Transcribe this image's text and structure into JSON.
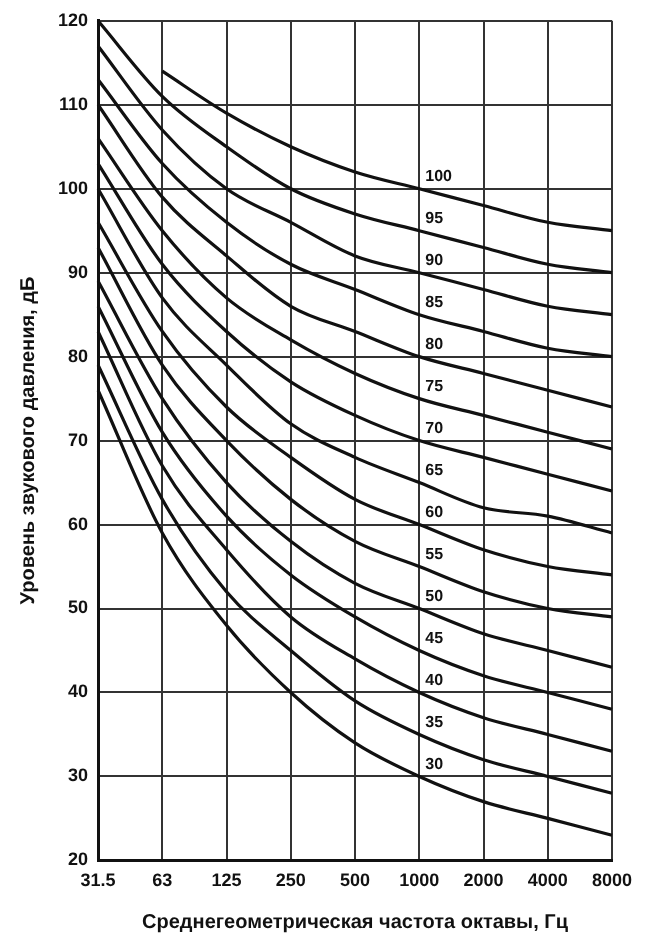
{
  "chart_data": {
    "type": "line",
    "xlabel": "Среднегеометрическая частота октавы, Гц",
    "ylabel": "Уровень звукового давления, дБ",
    "categories": [
      "31.5",
      "63",
      "125",
      "250",
      "500",
      "1000",
      "2000",
      "4000",
      "8000"
    ],
    "ylim": [
      20,
      120
    ],
    "yticks": [
      20,
      30,
      40,
      50,
      60,
      70,
      80,
      90,
      100,
      110,
      120
    ],
    "grid": true,
    "legend": false,
    "marker": "none",
    "line_style": "solid",
    "series": [
      {
        "name": "30",
        "color": "#111111",
        "values": [
          76,
          59,
          48,
          40,
          34,
          30,
          27,
          25,
          23
        ]
      },
      {
        "name": "35",
        "color": "#111111",
        "values": [
          79,
          63,
          52,
          45,
          39,
          35,
          32,
          30,
          28
        ]
      },
      {
        "name": "40",
        "color": "#111111",
        "values": [
          83,
          67,
          57,
          49,
          44,
          40,
          37,
          35,
          33
        ]
      },
      {
        "name": "45",
        "color": "#111111",
        "values": [
          86,
          71,
          61,
          54,
          49,
          45,
          42,
          40,
          38
        ]
      },
      {
        "name": "50",
        "color": "#111111",
        "values": [
          89,
          75,
          65,
          58,
          53,
          50,
          47,
          45,
          43
        ]
      },
      {
        "name": "55",
        "color": "#111111",
        "values": [
          93,
          79,
          70,
          63,
          58,
          55,
          52,
          50,
          49
        ]
      },
      {
        "name": "60",
        "color": "#111111",
        "values": [
          96,
          83,
          74,
          68,
          63,
          60,
          57,
          55,
          54
        ]
      },
      {
        "name": "65",
        "color": "#111111",
        "values": [
          100,
          87,
          79,
          72,
          68,
          65,
          62,
          61,
          59
        ]
      },
      {
        "name": "70",
        "color": "#111111",
        "values": [
          103,
          91,
          83,
          77,
          73,
          70,
          68,
          66,
          64
        ]
      },
      {
        "name": "75",
        "color": "#111111",
        "values": [
          106,
          95,
          87,
          82,
          78,
          75,
          73,
          71,
          69
        ]
      },
      {
        "name": "80",
        "color": "#111111",
        "values": [
          110,
          99,
          92,
          86,
          83,
          80,
          78,
          76,
          74
        ]
      },
      {
        "name": "85",
        "color": "#111111",
        "values": [
          113,
          103,
          96,
          91,
          88,
          85,
          83,
          81,
          80
        ]
      },
      {
        "name": "90",
        "color": "#111111",
        "values": [
          117,
          107,
          100,
          96,
          92,
          90,
          88,
          86,
          85
        ]
      },
      {
        "name": "95",
        "color": "#111111",
        "values": [
          120,
          111,
          105,
          100,
          97,
          95,
          93,
          91,
          90
        ]
      },
      {
        "name": "100",
        "color": "#111111",
        "values": [
          null,
          114,
          109,
          105,
          102,
          100,
          98,
          96,
          95
        ]
      }
    ]
  }
}
